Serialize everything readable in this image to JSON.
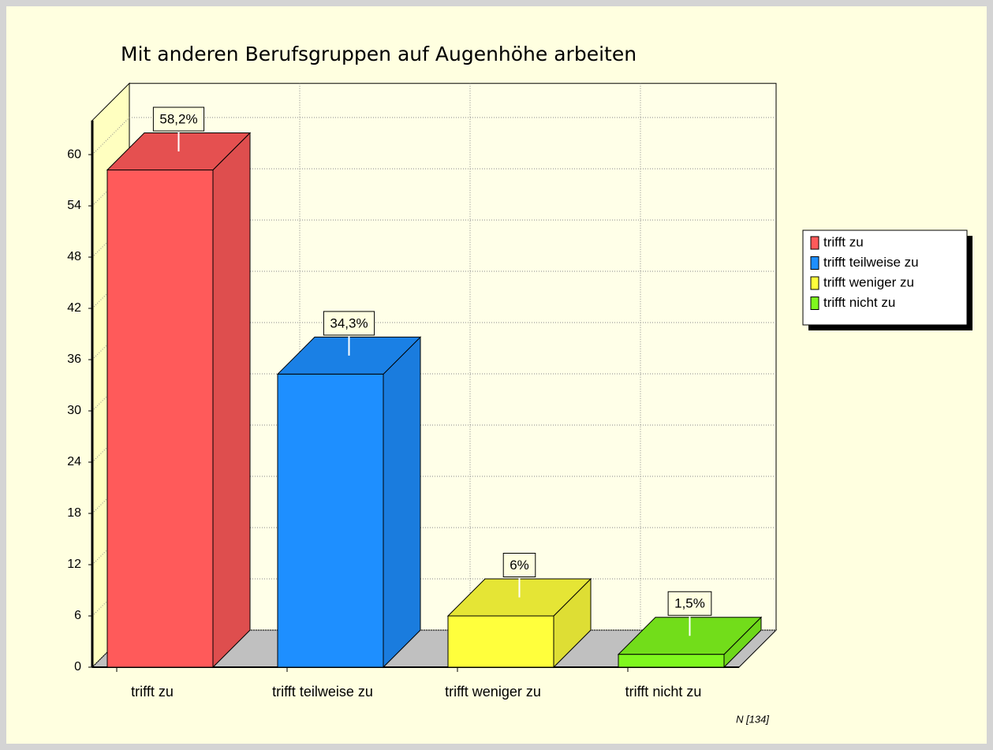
{
  "chart_data": {
    "type": "bar3d",
    "title": "Mit anderen Berufsgruppen auf Augenhöhe arbeiten",
    "categories": [
      "trifft zu",
      "trifft teilweise zu",
      "trifft weniger zu",
      "trifft nicht zu"
    ],
    "values": [
      58.2,
      34.3,
      6,
      1.5
    ],
    "value_labels": [
      "58,2%",
      "34,3%",
      "6%",
      "1,5%"
    ],
    "colors": [
      "#ff5a5a",
      "#1e8fff",
      "#ffff3c",
      "#7ff71e"
    ],
    "ylim": [
      0,
      64
    ],
    "yticks": [
      0,
      6,
      12,
      18,
      24,
      30,
      36,
      42,
      48,
      54,
      60
    ],
    "grid": true,
    "legend": "right",
    "annotation": "N [134]"
  }
}
